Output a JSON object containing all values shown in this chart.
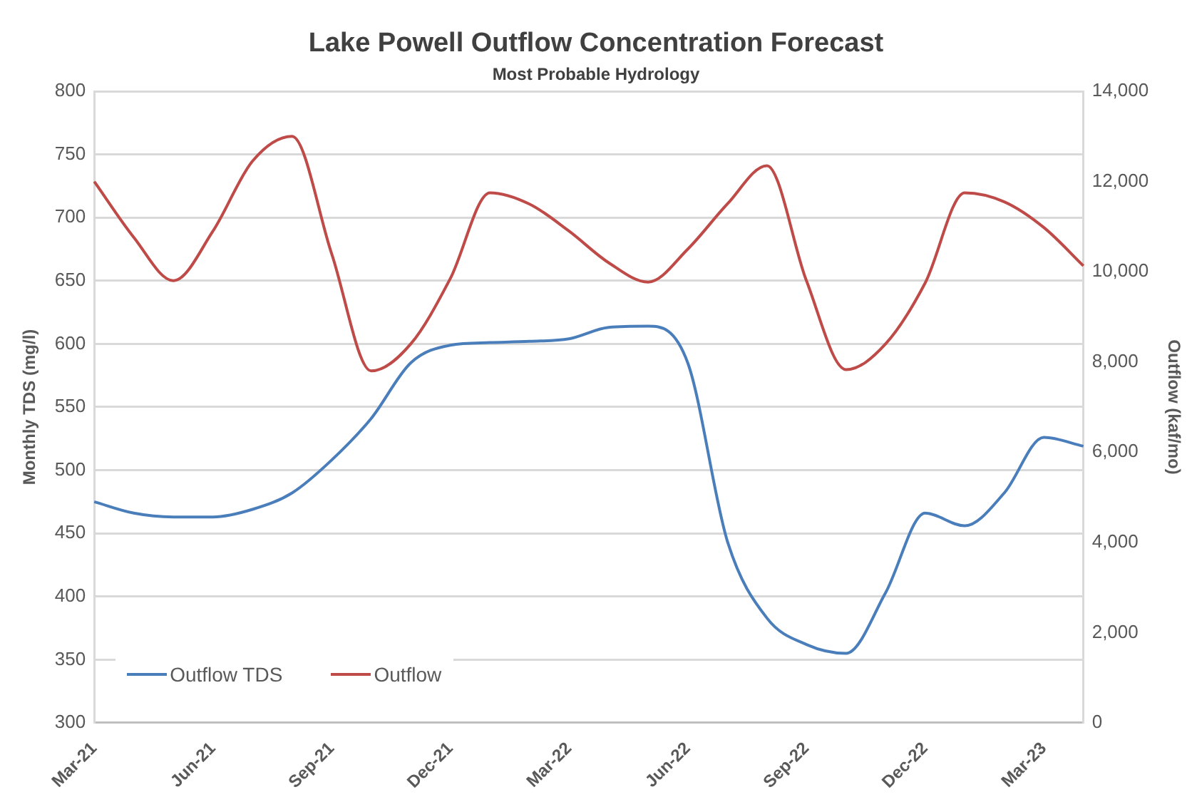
{
  "chart_data": {
    "type": "line",
    "title": "Lake Powell Outflow Concentration Forecast",
    "subtitle": "Most Probable Hydrology",
    "ylabel": "Monthly TDS (mg/l)",
    "y2label": "Outflow (kaf/mo)",
    "categories": [
      "Mar-21",
      null,
      null,
      "Jun-21",
      null,
      null,
      "Sep-21",
      null,
      null,
      "Dec-21",
      null,
      null,
      "Mar-22",
      null,
      null,
      "Jun-22",
      null,
      null,
      "Sep-22",
      null,
      null,
      "Dec-22",
      null,
      null,
      "Mar-23",
      null
    ],
    "series": [
      {
        "name": "Outflow TDS",
        "color": "#4a7ebb",
        "values": [
          475,
          466,
          463,
          463,
          469,
          482,
          508,
          541,
          585,
          599,
          601,
          602,
          604,
          613,
          614,
          585,
          444,
          383,
          362,
          355,
          403,
          466,
          456,
          482,
          526,
          519
        ]
      },
      {
        "name": "Outflow",
        "color": "#be4b48",
        "axis": "y2",
        "values": [
          12000,
          10760,
          9800,
          10900,
          12450,
          13000,
          10400,
          7800,
          8400,
          9850,
          11750,
          11500,
          10900,
          10200,
          9770,
          10500,
          11500,
          12350,
          9800,
          7830,
          8400,
          9750,
          11750,
          11550,
          10980,
          10130
        ]
      }
    ],
    "ylim": [
      300,
      800
    ],
    "yticks": [
      300,
      350,
      400,
      450,
      500,
      550,
      600,
      650,
      700,
      750,
      800
    ],
    "y2lim": [
      0,
      14000
    ],
    "y2ticks": [
      0,
      {
        "value": 2000,
        "label": "2,000"
      },
      {
        "value": 4000,
        "label": "4,000"
      },
      {
        "value": 6000,
        "label": "6,000"
      },
      {
        "value": 8000,
        "label": "8,000"
      },
      {
        "value": 10000,
        "label": "10,000"
      },
      {
        "value": 12000,
        "label": "12,000"
      },
      {
        "value": 14000,
        "label": "14,000"
      }
    ],
    "grid": "y",
    "legend": "bottom left",
    "marker": "none",
    "line_style": "solid"
  }
}
